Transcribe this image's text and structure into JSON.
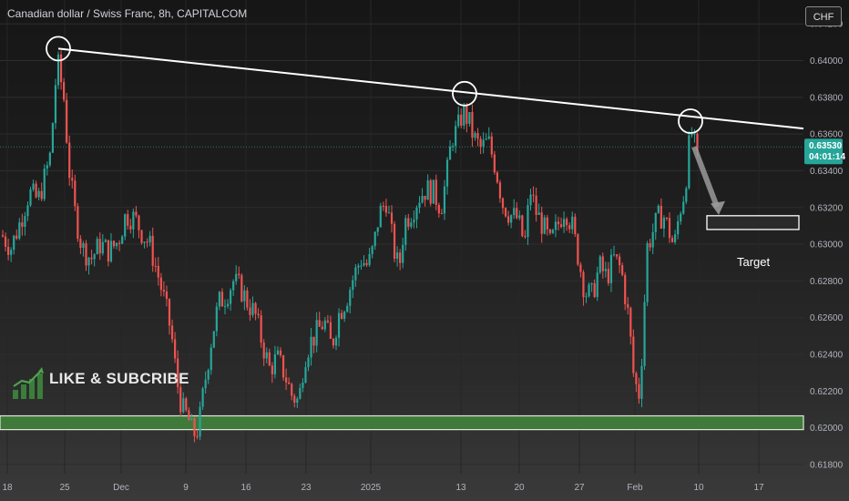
{
  "header": {
    "title": "Canadian dollar / Swiss Franc, 8h, CAPITALCOM",
    "currency_button": "CHF"
  },
  "colors": {
    "up": "#26a69a",
    "down": "#ef5350",
    "trendline": "#ffffff",
    "support_zone": "#3f7a3a",
    "price_tag": "#26a69a"
  },
  "chart_data": {
    "type": "candlestick",
    "symbol": "CADCHF",
    "timeframe": "8h",
    "ylim": [
      0.6175,
      0.6433
    ],
    "y_ticks": [
      "0.64200",
      "0.64000",
      "0.63800",
      "0.63600",
      "0.63400",
      "0.63200",
      "0.63000",
      "0.62800",
      "0.62600",
      "0.62400",
      "0.62200",
      "0.62000",
      "0.61800"
    ],
    "x_ticks": [
      "18",
      "25",
      "Dec",
      "9",
      "16",
      "23",
      "2025",
      "13",
      "20",
      "27",
      "Feb",
      "10",
      "17"
    ],
    "last_price": "0.63530",
    "countdown": "04:01:14",
    "trendline": {
      "start": [
        "Nov 24",
        0.64065
      ],
      "end": [
        "Feb 18+",
        0.6363
      ]
    },
    "swing_highs_circled": [
      {
        "date": "Nov 24",
        "price": 0.64065
      },
      {
        "date": "Jan 13",
        "price": 0.6382
      },
      {
        "date": "Feb 9",
        "price": 0.6367
      }
    ],
    "support_zone": [
      0.6199,
      0.62065
    ],
    "target_box": [
      0.6308,
      0.63155
    ],
    "target_label": "Target",
    "overlay_text": "LIKE & SUBCRIBE"
  }
}
